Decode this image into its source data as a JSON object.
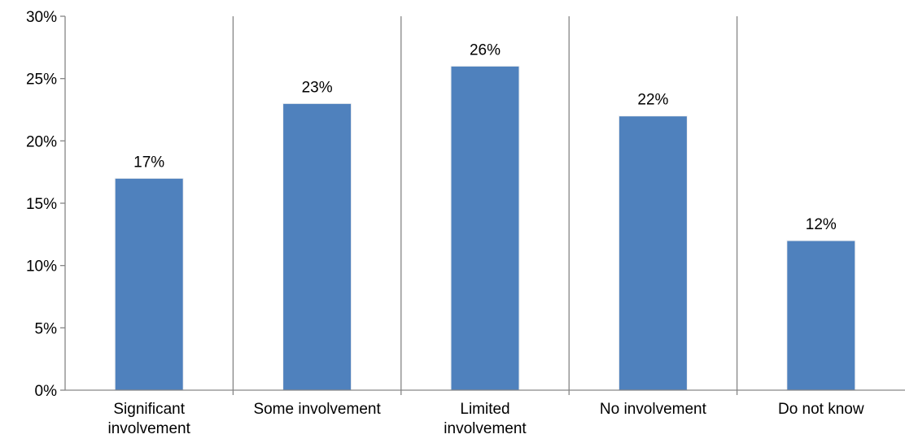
{
  "chart_data": {
    "type": "bar",
    "categories": [
      [
        "Significant",
        "involvement"
      ],
      [
        "Some involvement"
      ],
      [
        "Limited",
        "involvement"
      ],
      [
        "No involvement"
      ],
      [
        "Do not know"
      ]
    ],
    "values": [
      17,
      23,
      26,
      22,
      12
    ],
    "data_labels": [
      "17%",
      "23%",
      "26%",
      "22%",
      "12%"
    ],
    "y_ticks": [
      0,
      5,
      10,
      15,
      20,
      25,
      30
    ],
    "y_tick_labels": [
      "0%",
      "5%",
      "10%",
      "15%",
      "20%",
      "25%",
      "30%"
    ],
    "ylim": [
      0,
      30
    ],
    "grid": false,
    "category_separators": true,
    "bar_color": "#4f81bd",
    "axis_color": "#868686"
  }
}
